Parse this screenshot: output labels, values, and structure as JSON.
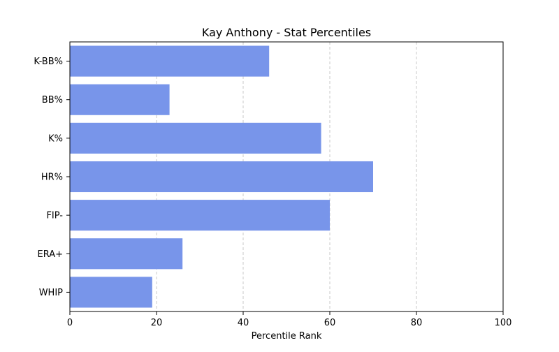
{
  "chart_data": {
    "type": "bar",
    "orientation": "horizontal",
    "title": "Kay Anthony - Stat Percentiles",
    "xlabel": "Percentile Rank",
    "ylabel": "",
    "categories": [
      "WHIP",
      "ERA+",
      "FIP-",
      "HR%",
      "K%",
      "BB%",
      "K-BB%"
    ],
    "values": [
      19,
      26,
      60,
      70,
      58,
      23,
      46
    ],
    "xlim": [
      0,
      100
    ],
    "xticks": [
      0,
      20,
      40,
      60,
      80,
      100
    ],
    "grid": "x-dashed",
    "legend": "none",
    "colors": {
      "bar": "#7895ea",
      "grid": "#c8c8c8",
      "axis": "#000000"
    }
  }
}
